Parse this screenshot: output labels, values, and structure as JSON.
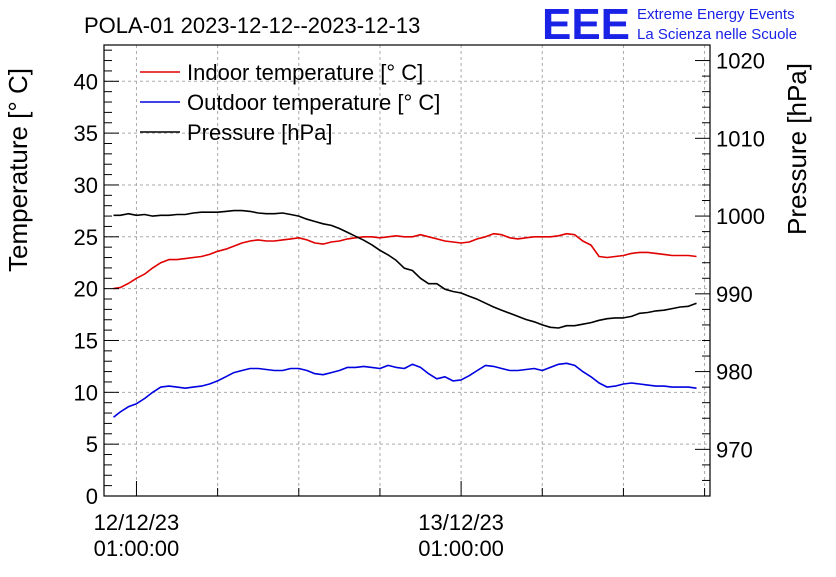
{
  "chart_data": {
    "type": "line",
    "title": "POLA-01 2023-12-12--2023-12-13",
    "brand": {
      "logo": "EEE",
      "line1": "Extreme Energy Events",
      "line2": "La Scienza nelle Scuole",
      "color": "#1a22e6"
    },
    "left_axis": {
      "label": "Temperature [° C]",
      "range": [
        0,
        43.5
      ],
      "ticks": [
        0,
        5,
        10,
        15,
        20,
        25,
        30,
        35,
        40
      ],
      "tick_labels": [
        "0",
        "5",
        "10",
        "15",
        "20",
        "25",
        "30",
        "35",
        "40"
      ]
    },
    "right_axis": {
      "label": "Pressure [hPa]",
      "range": [
        964,
        1022
      ],
      "ticks": [
        970,
        980,
        990,
        1000,
        1010,
        1020
      ],
      "tick_labels": [
        "970",
        "980",
        "990",
        "1000",
        "1010",
        "1020"
      ]
    },
    "x_axis": {
      "range_hours": [
        -2.4,
        42.4
      ],
      "ticks_hours": [
        0,
        24
      ],
      "tick_labels": [
        {
          "date": "12/12/23",
          "time": "01:00:00"
        },
        {
          "date": "13/12/23",
          "time": "01:00:00"
        }
      ]
    },
    "grid": true,
    "legend_position": "top-left",
    "series": [
      {
        "name": "Indoor temperature [° C]",
        "axis": "left",
        "color": "#e00000",
        "x": [
          -1.7,
          -1.2,
          -0.6,
          0.0,
          0.6,
          1.2,
          1.8,
          2.4,
          3.0,
          3.6,
          4.2,
          4.8,
          5.4,
          6.0,
          6.6,
          7.2,
          7.8,
          8.4,
          9.0,
          9.6,
          10.2,
          10.8,
          11.4,
          12.0,
          12.6,
          13.2,
          13.8,
          14.4,
          15.0,
          15.6,
          16.2,
          16.8,
          17.4,
          18.0,
          18.6,
          19.2,
          19.8,
          20.4,
          21.0,
          21.6,
          22.2,
          22.8,
          23.4,
          24.0,
          24.6,
          25.2,
          25.8,
          26.4,
          27.0,
          27.6,
          28.2,
          28.8,
          29.4,
          30.0,
          30.6,
          31.2,
          31.8,
          32.4,
          33.0,
          33.6,
          34.2,
          34.8,
          35.4,
          36.0,
          36.6,
          37.2,
          37.8,
          38.4,
          39.0,
          39.6,
          40.2,
          40.8,
          41.4
        ],
        "y": [
          20.0,
          20.1,
          20.5,
          21.0,
          21.4,
          22.0,
          22.5,
          22.8,
          22.8,
          22.9,
          23.0,
          23.1,
          23.3,
          23.6,
          23.8,
          24.1,
          24.4,
          24.6,
          24.7,
          24.6,
          24.6,
          24.7,
          24.8,
          24.9,
          24.7,
          24.4,
          24.3,
          24.5,
          24.6,
          24.8,
          24.9,
          25.0,
          25.0,
          24.9,
          25.0,
          25.1,
          25.0,
          25.0,
          25.2,
          25.0,
          24.8,
          24.6,
          24.5,
          24.4,
          24.5,
          24.8,
          25.0,
          25.3,
          25.2,
          24.9,
          24.8,
          24.9,
          25.0,
          25.0,
          25.0,
          25.1,
          25.3,
          25.2,
          24.6,
          24.2,
          23.1,
          23.0,
          23.1,
          23.2,
          23.4,
          23.5,
          23.5,
          23.4,
          23.3,
          23.2,
          23.2,
          23.2,
          23.1
        ]
      },
      {
        "name": "Outdoor temperature [° C]",
        "axis": "left",
        "color": "#0000e0",
        "x": [
          -1.7,
          -1.2,
          -0.6,
          0.0,
          0.6,
          1.2,
          1.8,
          2.4,
          3.0,
          3.6,
          4.2,
          4.8,
          5.4,
          6.0,
          6.6,
          7.2,
          7.8,
          8.4,
          9.0,
          9.6,
          10.2,
          10.8,
          11.4,
          12.0,
          12.6,
          13.2,
          13.8,
          14.4,
          15.0,
          15.6,
          16.2,
          16.8,
          17.4,
          18.0,
          18.6,
          19.2,
          19.8,
          20.4,
          21.0,
          21.6,
          22.2,
          22.8,
          23.4,
          24.0,
          24.6,
          25.2,
          25.8,
          26.4,
          27.0,
          27.6,
          28.2,
          28.8,
          29.4,
          30.0,
          30.6,
          31.2,
          31.8,
          32.4,
          33.0,
          33.6,
          34.2,
          34.8,
          35.4,
          36.0,
          36.6,
          37.2,
          37.8,
          38.4,
          39.0,
          39.6,
          40.2,
          40.8,
          41.4
        ],
        "y": [
          7.6,
          8.1,
          8.6,
          8.9,
          9.4,
          10.0,
          10.5,
          10.6,
          10.5,
          10.4,
          10.5,
          10.6,
          10.8,
          11.1,
          11.5,
          11.9,
          12.1,
          12.3,
          12.3,
          12.2,
          12.1,
          12.1,
          12.3,
          12.3,
          12.1,
          11.8,
          11.7,
          11.9,
          12.1,
          12.4,
          12.4,
          12.5,
          12.4,
          12.3,
          12.6,
          12.4,
          12.3,
          12.7,
          12.4,
          11.8,
          11.3,
          11.5,
          11.1,
          11.2,
          11.6,
          12.1,
          12.6,
          12.5,
          12.3,
          12.1,
          12.1,
          12.2,
          12.3,
          12.1,
          12.4,
          12.7,
          12.8,
          12.6,
          12.0,
          11.5,
          10.9,
          10.5,
          10.6,
          10.8,
          10.9,
          10.8,
          10.7,
          10.6,
          10.6,
          10.5,
          10.5,
          10.5,
          10.4
        ]
      },
      {
        "name": "Pressure [hPa]",
        "axis": "right",
        "color": "#000000",
        "x": [
          -1.7,
          -1.2,
          -0.6,
          0.0,
          0.6,
          1.2,
          1.8,
          2.4,
          3.0,
          3.6,
          4.2,
          4.8,
          5.4,
          6.0,
          6.6,
          7.2,
          7.8,
          8.4,
          9.0,
          9.6,
          10.2,
          10.8,
          11.4,
          12.0,
          12.6,
          13.2,
          13.8,
          14.4,
          15.0,
          15.6,
          16.2,
          16.8,
          17.4,
          18.0,
          18.6,
          19.2,
          19.8,
          20.4,
          21.0,
          21.6,
          22.2,
          22.8,
          23.4,
          24.0,
          24.6,
          25.2,
          25.8,
          26.4,
          27.0,
          27.6,
          28.2,
          28.8,
          29.4,
          30.0,
          30.6,
          31.2,
          31.8,
          32.4,
          33.0,
          33.6,
          34.2,
          34.8,
          35.4,
          36.0,
          36.6,
          37.2,
          37.8,
          38.4,
          39.0,
          39.6,
          40.2,
          40.8,
          41.4
        ],
        "y": [
          1000.1,
          1000.1,
          1000.3,
          1000.1,
          1000.2,
          1000.0,
          1000.1,
          1000.1,
          1000.2,
          1000.2,
          1000.4,
          1000.5,
          1000.5,
          1000.5,
          1000.6,
          1000.7,
          1000.7,
          1000.6,
          1000.4,
          1000.3,
          1000.3,
          1000.4,
          1000.2,
          1000.0,
          999.6,
          999.3,
          999.0,
          998.8,
          998.4,
          997.9,
          997.4,
          996.9,
          996.3,
          995.6,
          995.0,
          994.3,
          993.3,
          993.0,
          992.0,
          991.3,
          991.3,
          990.6,
          990.3,
          990.1,
          989.7,
          989.3,
          988.8,
          988.3,
          987.9,
          987.5,
          987.1,
          986.7,
          986.4,
          986.0,
          985.7,
          985.6,
          985.9,
          985.9,
          986.1,
          986.3,
          986.6,
          986.8,
          986.9,
          986.9,
          987.1,
          987.5,
          987.6,
          987.8,
          987.9,
          988.1,
          988.3,
          988.4,
          988.8
        ]
      }
    ]
  }
}
